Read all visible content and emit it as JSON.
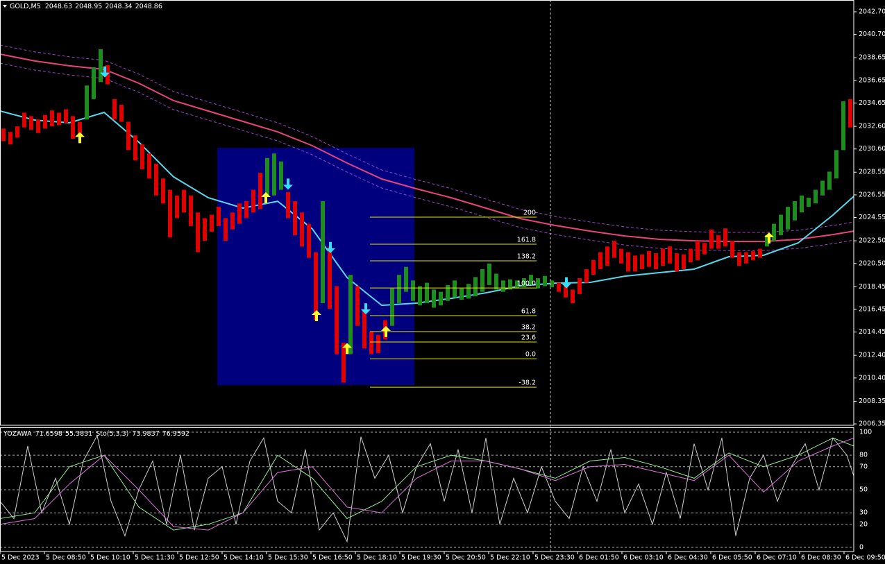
{
  "chart_data": [
    {
      "type": "candlestick",
      "title": "GOLD,M5",
      "quote": [
        2048.63,
        2048.95,
        2048.34,
        2048.86
      ],
      "xlim": [
        0,
        123
      ],
      "ylim": [
        2006.23,
        2043.74
      ],
      "yticks": [
        {
          "value": 2042.7,
          "label": "2042.70"
        },
        {
          "value": 2040.7,
          "label": "2040.70"
        },
        2038.65,
        2036.65,
        2034.65,
        {
          "value": 2032.6,
          "label": "2032.60"
        },
        {
          "value": 2030.6,
          "label": "2030.60"
        },
        2028.55,
        2026.55,
        2024.55,
        {
          "value": 2022.5,
          "label": "2022.50"
        },
        {
          "value": 2020.5,
          "label": "2020.50"
        },
        2018.45,
        2016.45,
        2014.45,
        {
          "value": 2012.4,
          "label": "2012.40"
        },
        {
          "value": 2010.4,
          "label": "2010.40"
        },
        2008.35,
        2006.35
      ],
      "bars": {
        "up_color": "#1e8c1e",
        "down_color": "#e00000",
        "open": [
          2032.4,
          2032.1,
          2032.6,
          2033.8,
          2033.5,
          2033.2,
          2033.6,
          2034.0,
          2033.8,
          2034.1,
          2033.5,
          2033.0,
          2033.2,
          2035.0,
          2036.5,
          2038.0,
          2035.0,
          2034.5,
          2033.0,
          2031.8,
          2031.0,
          2030.2,
          2029.3,
          2028.0,
          2027.0,
          2026.5,
          2027.0,
          2026.5,
          2025.0,
          2024.5,
          2024.8,
          2025.5,
          2024.5,
          2025.0,
          2025.8,
          2026.0,
          2027.0,
          2028.5,
          2026.5,
          2026.5,
          2027.0,
          2026.8,
          2026.0,
          2025.0,
          2024.0,
          2021.5,
          2017.0,
          2022.0,
          2018.5,
          2013.5,
          2012.5,
          2018.5,
          2016.5,
          2014.5,
          2014.2,
          2015.5,
          2015.0,
          2017.0,
          2018.0,
          2017.2,
          2016.8,
          2017.0,
          2016.6,
          2016.8,
          2017.2,
          2017.5,
          2017.3,
          2017.4,
          2017.6,
          2018.0,
          2018.6,
          2018.2,
          2018.0,
          2018.2,
          2018.3,
          2018.4,
          2018.6,
          2018.3,
          2018.5,
          2018.4,
          2018.8,
          2018.5,
          2018.2,
          2019.2,
          2020.0,
          2020.8,
          2021.5,
          2022.0,
          2022.5,
          2021.8,
          2021.5,
          2021.2,
          2021.3,
          2021.6,
          2021.4,
          2021.8,
          2022.0,
          2021.4,
          2021.3,
          2021.8,
          2022.5,
          2022.3,
          2023.5,
          2023.0,
          2023.6,
          2022.5,
          2021.5,
          2021.5,
          2021.6,
          2021.8,
          2022.0,
          2022.5,
          2023.0,
          2023.5,
          2024.3,
          2025.0,
          2025.5,
          2025.8,
          2026.5,
          2027.0,
          2028.0,
          2030.5,
          2035.0
        ],
        "close": [
          2031.3,
          2031.0,
          2031.6,
          2032.5,
          2032.3,
          2032.0,
          2032.4,
          2032.6,
          2032.7,
          2032.9,
          2031.5,
          2031.9,
          2036.2,
          2037.8,
          2039.4,
          2036.3,
          2033.2,
          2033.0,
          2030.5,
          2029.6,
          2028.8,
          2028.0,
          2026.5,
          2025.8,
          2022.8,
          2024.5,
          2025.0,
          2023.8,
          2021.5,
          2022.5,
          2023.3,
          2023.8,
          2022.5,
          2023.5,
          2024.0,
          2024.5,
          2025.0,
          2025.3,
          2029.8,
          2030.2,
          2029.5,
          2024.5,
          2023.0,
          2022.0,
          2021.0,
          2015.5,
          2026.0,
          2016.5,
          2012.5,
          2010.0,
          2019.5,
          2015.0,
          2013.0,
          2012.5,
          2012.6,
          2013.8,
          2018.3,
          2019.5,
          2020.2,
          2019.0,
          2018.5,
          2018.8,
          2018.2,
          2018.0,
          2018.6,
          2019.0,
          2018.3,
          2018.7,
          2019.3,
          2020.0,
          2020.5,
          2019.6,
          2019.0,
          2019.1,
          2019.0,
          2019.2,
          2019.5,
          2019.2,
          2019.4,
          2019.0,
          2018.0,
          2017.5,
          2017.0,
          2017.8,
          2018.8,
          2019.5,
          2020.0,
          2020.3,
          2021.0,
          2020.5,
          2019.8,
          2019.8,
          2020.0,
          2020.2,
          2020.0,
          2020.3,
          2020.5,
          2019.8,
          2020.0,
          2020.6,
          2020.8,
          2021.3,
          2021.8,
          2021.8,
          2022.0,
          2021.0,
          2020.3,
          2020.5,
          2020.8,
          2021.0,
          2023.0,
          2024.0,
          2024.8,
          2025.5,
          2026.0,
          2026.5,
          2026.3,
          2027.0,
          2027.8,
          2028.6,
          2030.5,
          2034.8,
          2032.5
        ]
      },
      "lines": {
        "x": [
          0,
          5,
          10,
          15,
          20,
          25,
          30,
          35,
          40,
          45,
          50,
          55,
          60,
          65,
          70,
          75,
          80,
          85,
          90,
          95,
          100,
          105,
          110,
          115,
          120,
          123
        ],
        "series": [
          {
            "color": "#a040d0",
            "dashed": true,
            "values": [
              2039.77,
              2039.16,
              2038.73,
              2038.42,
              2037.2,
              2035.67,
              2034.75,
              2033.83,
              2032.91,
              2031.69,
              2030.16,
              2028.75,
              2027.89,
              2027.1,
              2026.18,
              2025.26,
              2024.65,
              2024.16,
              2023.73,
              2023.43,
              2023.3,
              2023.24,
              2023.24,
              2023.43,
              2023.85,
              2024.16
            ]
          },
          {
            "color": "#a040d0",
            "dashed": true,
            "values": [
              2038.17,
              2037.56,
              2037.13,
              2036.82,
              2035.6,
              2034.07,
              2033.15,
              2032.23,
              2031.31,
              2030.09,
              2028.56,
              2027.15,
              2026.29,
              2025.5,
              2024.58,
              2023.66,
              2023.05,
              2022.56,
              2022.13,
              2021.83,
              2021.7,
              2021.64,
              2021.64,
              2021.83,
              2022.25,
              2022.56
            ]
          },
          {
            "color": "#e8437f",
            "dashed": false,
            "values": [
              2038.97,
              2038.36,
              2037.93,
              2037.62,
              2036.4,
              2034.87,
              2033.95,
              2033.03,
              2032.11,
              2030.89,
              2029.36,
              2027.95,
              2027.09,
              2026.3,
              2025.38,
              2024.46,
              2023.85,
              2023.36,
              2022.93,
              2022.63,
              2022.5,
              2022.44,
              2022.44,
              2022.63,
              2023.05,
              2023.36
            ]
          },
          {
            "color": "#55d8f0",
            "dashed": false,
            "values": [
              2033.95,
              2033.15,
              2032.91,
              2033.83,
              2031.2,
              2028.14,
              2026.3,
              2025.38,
              2025.99,
              2023.54,
              2019.26,
              2016.81,
              2017.0,
              2017.42,
              2017.91,
              2018.53,
              2018.77,
              2018.83,
              2019.38,
              2019.69,
              2020.0,
              2021.1,
              2021.22,
              2022.32,
              2024.77,
              2026.42
            ]
          }
        ]
      },
      "up_arrows": {
        "color": "#ffff33",
        "x": [
          11.5,
          38.3,
          45.6,
          50,
          55.6,
          110.8
        ],
        "y": [
          2031.6,
          2026.3,
          2015.9,
          2013.0,
          2014.5,
          2022.75
        ]
      },
      "down_arrows": {
        "color": "#33e0ff",
        "x": [
          15.1,
          41.5,
          47.6,
          52.7,
          81.6
        ],
        "y": [
          2037.4,
          2027.5,
          2021.9,
          2016.5,
          2018.8
        ]
      },
      "rectangle": {
        "color": "#00007f",
        "x": [
          31.3,
          59.7
        ],
        "y": [
          2030.7,
          2009.77
        ]
      },
      "fibonacci": {
        "color": "#e8e800",
        "x": [
          53.3,
          77.3
        ],
        "levels": [
          "200",
          "161.8",
          "138.2",
          "100.0",
          "61.8",
          "38.2",
          "23.6",
          "0.0",
          "-38.2"
        ],
        "prices": [
          2024.59,
          2022.2,
          2020.73,
          2018.34,
          2015.9,
          2014.49,
          2013.57,
          2012.1,
          2009.59
        ]
      }
    },
    {
      "type": "line",
      "indicator": "YOZAWA",
      "indicator_values": [
        71.6598,
        55.3831
      ],
      "oscillator": "Sto(5,3,3)",
      "oscillator_values": [
        73.9837,
        76.9592
      ],
      "xlim": [
        0,
        123
      ],
      "ylim": [
        -3.6,
        103.6
      ],
      "yticks": [
        100,
        80,
        70,
        50,
        30,
        20,
        0
      ],
      "xticks": [
        {
          "value": 0,
          "label": "5 Dec 2023"
        },
        {
          "value": 6.4,
          "label": "5 Dec 08:50"
        },
        {
          "value": 12.8,
          "label": "5 Dec 10:10"
        },
        {
          "value": 19.2,
          "label": "5 Dec 11:30"
        },
        {
          "value": 25.6,
          "label": "5 Dec 12:50"
        },
        {
          "value": 32,
          "label": "5 Dec 14:10"
        },
        {
          "value": 38.4,
          "label": "5 Dec 15:30"
        },
        {
          "value": 44.8,
          "label": "5 Dec 16:50"
        },
        {
          "value": 51.2,
          "label": "5 Dec 18:10"
        },
        {
          "value": 57.6,
          "label": "5 Dec 19:30"
        },
        {
          "value": 64,
          "label": "5 Dec 20:50"
        },
        {
          "value": 70.4,
          "label": "5 Dec 22:10"
        },
        {
          "value": 76.8,
          "label": "5 Dec 23:30"
        },
        {
          "value": 83.2,
          "label": "6 Dec 01:50"
        },
        {
          "value": 89.6,
          "label": "6 Dec 03:10"
        },
        {
          "value": 96,
          "label": "6 Dec 04:30"
        },
        {
          "value": 102.4,
          "label": "6 Dec 05:50"
        },
        {
          "value": 108.8,
          "label": "6 Dec 07:10"
        },
        {
          "value": 115.2,
          "label": "6 Dec 08:30"
        },
        {
          "value": 121.6,
          "label": "6 Dec 09:50"
        }
      ],
      "series": [
        {
          "color": "#d0d0d0",
          "x": [
            0,
            2,
            4,
            6,
            8,
            10,
            12,
            14,
            16,
            18,
            20,
            22,
            24,
            26,
            28,
            30,
            32,
            34,
            36,
            38,
            40,
            42,
            44,
            46,
            48,
            50,
            52,
            54,
            56,
            58,
            60,
            62,
            64,
            66,
            68,
            70,
            72,
            74,
            76,
            78,
            80,
            82,
            84,
            86,
            88,
            90,
            92,
            94,
            96,
            98,
            100,
            102,
            104,
            106,
            108,
            110,
            112,
            114,
            116,
            118,
            120,
            122,
            123
          ],
          "values": [
            40,
            25,
            88,
            30,
            60,
            20,
            75,
            97,
            40,
            10,
            50,
            75,
            20,
            80,
            15,
            60,
            70,
            20,
            75,
            95,
            40,
            30,
            85,
            15,
            30,
            5,
            96,
            60,
            80,
            30,
            70,
            90,
            40,
            85,
            30,
            95,
            20,
            60,
            30,
            70,
            40,
            25,
            70,
            40,
            85,
            30,
            55,
            20,
            65,
            25,
            90,
            50,
            95,
            10,
            60,
            80,
            40,
            70,
            90,
            50,
            95,
            80,
            62
          ]
        },
        {
          "color": "#90ee90",
          "x": [
            0,
            5,
            10,
            15,
            20,
            25,
            30,
            35,
            40,
            45,
            50,
            55,
            60,
            65,
            70,
            75,
            80,
            85,
            90,
            95,
            100,
            105,
            110,
            115,
            120,
            123
          ],
          "values": [
            25,
            30,
            70,
            80,
            35,
            15,
            20,
            30,
            80,
            60,
            25,
            40,
            70,
            80,
            75,
            68,
            60,
            75,
            78,
            70,
            60,
            82,
            70,
            80,
            95,
            88
          ]
        },
        {
          "color": "#e070e0",
          "x": [
            0,
            5,
            10,
            15,
            20,
            25,
            30,
            35,
            40,
            45,
            50,
            55,
            60,
            65,
            70,
            75,
            80,
            85,
            90,
            95,
            100,
            105,
            110,
            115,
            120,
            123
          ],
          "values": [
            20,
            25,
            55,
            80,
            50,
            18,
            15,
            30,
            65,
            70,
            35,
            30,
            60,
            75,
            75,
            68,
            58,
            70,
            72,
            65,
            58,
            80,
            48,
            75,
            88,
            95
          ]
        }
      ]
    }
  ]
}
